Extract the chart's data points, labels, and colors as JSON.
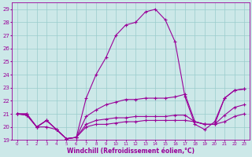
{
  "xlabel": "Windchill (Refroidissement éolien,°C)",
  "bg_color": "#cce8e8",
  "grid_color": "#99cccc",
  "line_color": "#990099",
  "xlim": [
    -0.5,
    23.5
  ],
  "ylim": [
    19,
    29.5
  ],
  "yticks": [
    19,
    20,
    21,
    22,
    23,
    24,
    25,
    26,
    27,
    28,
    29
  ],
  "xticks": [
    0,
    1,
    2,
    3,
    4,
    5,
    6,
    7,
    8,
    9,
    10,
    11,
    12,
    13,
    14,
    15,
    16,
    17,
    18,
    19,
    20,
    21,
    22,
    23
  ],
  "line1_x": [
    0,
    1,
    2,
    3,
    4,
    5,
    6,
    7,
    8,
    9,
    10,
    11,
    12,
    13,
    14,
    15,
    16,
    17,
    18,
    19,
    20,
    21,
    22,
    23
  ],
  "line1_y": [
    21.0,
    20.9,
    20.0,
    20.5,
    19.8,
    19.1,
    19.2,
    22.2,
    24.0,
    25.3,
    27.0,
    27.8,
    28.0,
    28.8,
    29.0,
    28.2,
    26.5,
    22.3,
    20.2,
    19.8,
    20.4,
    22.2,
    22.8,
    22.9
  ],
  "line2_x": [
    0,
    1,
    2,
    3,
    4,
    5,
    6,
    7,
    8,
    9,
    10,
    11,
    12,
    13,
    14,
    15,
    16,
    17,
    18,
    19,
    20,
    21,
    22,
    23
  ],
  "line2_y": [
    21.0,
    20.9,
    20.0,
    20.5,
    19.8,
    19.1,
    19.2,
    20.8,
    21.3,
    21.7,
    21.9,
    22.1,
    22.1,
    22.2,
    22.2,
    22.2,
    22.3,
    22.5,
    20.4,
    20.2,
    20.2,
    22.2,
    22.8,
    22.9
  ],
  "line3_x": [
    0,
    1,
    2,
    3,
    4,
    5,
    6,
    7,
    8,
    9,
    10,
    11,
    12,
    13,
    14,
    15,
    16,
    17,
    18,
    19,
    20,
    21,
    22,
    23
  ],
  "line3_y": [
    21.0,
    21.0,
    20.0,
    20.5,
    19.8,
    19.1,
    19.2,
    20.2,
    20.5,
    20.6,
    20.7,
    20.7,
    20.8,
    20.8,
    20.8,
    20.8,
    20.9,
    20.9,
    20.4,
    20.2,
    20.2,
    20.9,
    21.5,
    21.7
  ],
  "line4_x": [
    0,
    1,
    2,
    3,
    4,
    5,
    6,
    7,
    8,
    9,
    10,
    11,
    12,
    13,
    14,
    15,
    16,
    17,
    18,
    19,
    20,
    21,
    22,
    23
  ],
  "line4_y": [
    21.0,
    21.0,
    20.0,
    20.0,
    19.8,
    19.1,
    19.2,
    20.0,
    20.2,
    20.2,
    20.3,
    20.4,
    20.4,
    20.5,
    20.5,
    20.5,
    20.5,
    20.5,
    20.4,
    20.2,
    20.2,
    20.4,
    20.8,
    21.0
  ]
}
